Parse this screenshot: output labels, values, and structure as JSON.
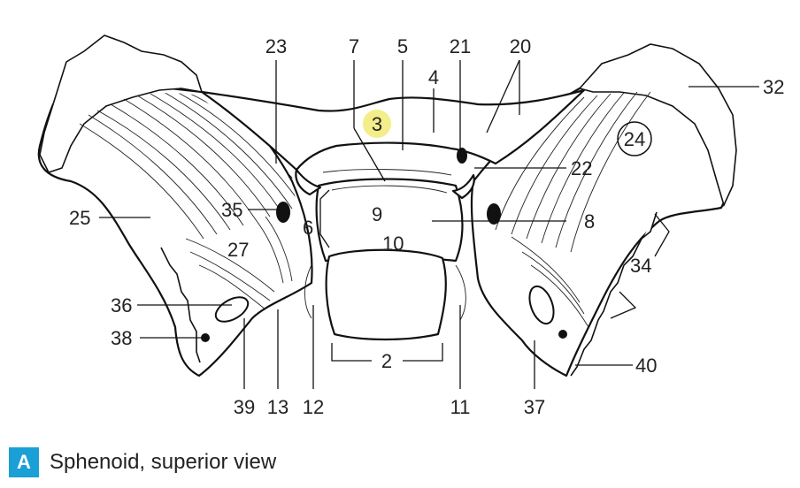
{
  "figure": {
    "caption_letter": "A",
    "caption_text": "Sphenoid, superior view",
    "colors": {
      "badge": "#1a9fd6",
      "highlight": "#f3ee8a"
    },
    "labels": [
      {
        "id": "l23",
        "text": "23"
      },
      {
        "id": "l7",
        "text": "7"
      },
      {
        "id": "l5",
        "text": "5"
      },
      {
        "id": "l21",
        "text": "21"
      },
      {
        "id": "l20",
        "text": "20"
      },
      {
        "id": "l4",
        "text": "4"
      },
      {
        "id": "l32",
        "text": "32"
      },
      {
        "id": "l3",
        "text": "3",
        "highlighted": true
      },
      {
        "id": "l24",
        "text": "24",
        "circled": true
      },
      {
        "id": "l22",
        "text": "22"
      },
      {
        "id": "l35",
        "text": "35"
      },
      {
        "id": "l25",
        "text": "25"
      },
      {
        "id": "l6",
        "text": "6"
      },
      {
        "id": "l9",
        "text": "9"
      },
      {
        "id": "l8",
        "text": "8"
      },
      {
        "id": "l10",
        "text": "10"
      },
      {
        "id": "l27",
        "text": "27"
      },
      {
        "id": "l34",
        "text": "34"
      },
      {
        "id": "l36",
        "text": "36"
      },
      {
        "id": "l38",
        "text": "38"
      },
      {
        "id": "l40",
        "text": "40"
      },
      {
        "id": "l2",
        "text": "2"
      },
      {
        "id": "l39",
        "text": "39"
      },
      {
        "id": "l13",
        "text": "13"
      },
      {
        "id": "l12",
        "text": "12"
      },
      {
        "id": "l11",
        "text": "11"
      },
      {
        "id": "l37",
        "text": "37"
      }
    ]
  }
}
